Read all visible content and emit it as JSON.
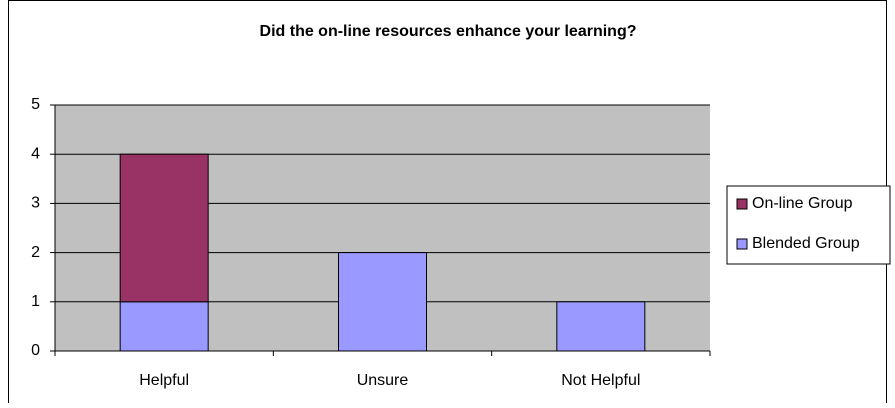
{
  "chart_data": {
    "type": "stacked-bar",
    "title": "Did the on-line resources enhance your learning?",
    "categories": [
      "Helpful",
      "Unsure",
      "Not Helpful"
    ],
    "series": [
      {
        "name": "Blended Group",
        "color": "#9999ff",
        "values": [
          1,
          2,
          1
        ]
      },
      {
        "name": "On-line Group",
        "color": "#993366",
        "values": [
          3,
          0,
          0
        ]
      }
    ],
    "ylim": [
      0,
      5
    ],
    "yticks": [
      0,
      1,
      2,
      3,
      4,
      5
    ],
    "grid": true,
    "legend": "right"
  }
}
